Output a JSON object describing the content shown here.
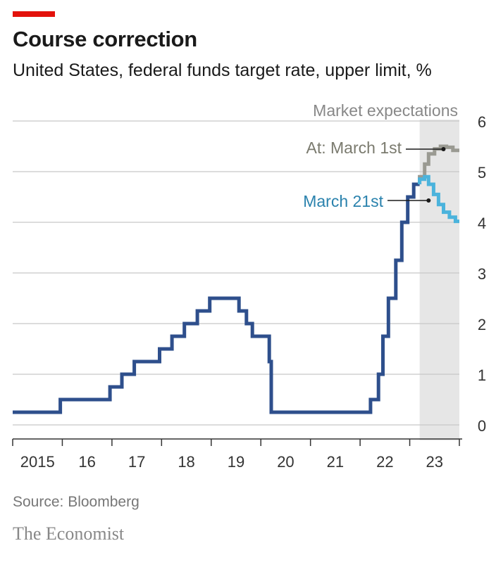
{
  "header": {
    "accent_color": "#e3120b",
    "title": "Course correction",
    "subtitle": "United States, federal funds target rate, upper limit, %"
  },
  "footer": {
    "source": "Source: Bloomberg",
    "brand": "The Economist"
  },
  "chart_data": {
    "type": "line",
    "step": true,
    "title": "Course correction",
    "subtitle": "United States, federal funds target rate, upper limit, %",
    "x_range": [
      2015.0,
      2024.0
    ],
    "x_ticks": [
      2015,
      2016,
      2017,
      2018,
      2019,
      2020,
      2021,
      2022,
      2023
    ],
    "x_tick_labels": [
      "2015",
      "16",
      "17",
      "18",
      "19",
      "20",
      "21",
      "22",
      "23"
    ],
    "ylim": [
      0,
      6
    ],
    "y_ticks": [
      0,
      1,
      2,
      3,
      4,
      5,
      6
    ],
    "y_tick_labels": [
      "0",
      "1",
      "2",
      "3",
      "4",
      "5",
      "6"
    ],
    "y_axis_side": "right",
    "grid": "horizontal",
    "shaded_region": {
      "label": "Market expectations",
      "x": [
        2023.2,
        2024.0
      ],
      "color": "#e6e6e6"
    },
    "series": [
      {
        "color": "#2e4f8c",
        "points": [
          [
            2015.0,
            0.25
          ],
          [
            2015.96,
            0.25
          ],
          [
            2015.96,
            0.5
          ],
          [
            2016.96,
            0.5
          ],
          [
            2016.96,
            0.75
          ],
          [
            2017.2,
            0.75
          ],
          [
            2017.2,
            1.0
          ],
          [
            2017.45,
            1.0
          ],
          [
            2017.45,
            1.25
          ],
          [
            2017.96,
            1.25
          ],
          [
            2017.96,
            1.5
          ],
          [
            2018.21,
            1.5
          ],
          [
            2018.21,
            1.75
          ],
          [
            2018.46,
            1.75
          ],
          [
            2018.46,
            2.0
          ],
          [
            2018.72,
            2.0
          ],
          [
            2018.72,
            2.25
          ],
          [
            2018.97,
            2.25
          ],
          [
            2018.97,
            2.5
          ],
          [
            2019.56,
            2.5
          ],
          [
            2019.56,
            2.25
          ],
          [
            2019.71,
            2.25
          ],
          [
            2019.71,
            2.0
          ],
          [
            2019.83,
            2.0
          ],
          [
            2019.83,
            1.75
          ],
          [
            2020.17,
            1.75
          ],
          [
            2020.17,
            1.25
          ],
          [
            2020.21,
            1.25
          ],
          [
            2020.21,
            0.25
          ],
          [
            2022.21,
            0.25
          ],
          [
            2022.21,
            0.5
          ],
          [
            2022.37,
            0.5
          ],
          [
            2022.37,
            1.0
          ],
          [
            2022.46,
            1.0
          ],
          [
            2022.46,
            1.75
          ],
          [
            2022.57,
            1.75
          ],
          [
            2022.57,
            2.5
          ],
          [
            2022.72,
            2.5
          ],
          [
            2022.72,
            3.25
          ],
          [
            2022.84,
            3.25
          ],
          [
            2022.84,
            4.0
          ],
          [
            2022.96,
            4.0
          ],
          [
            2022.96,
            4.5
          ],
          [
            2023.08,
            4.5
          ],
          [
            2023.08,
            4.75
          ],
          [
            2023.2,
            4.75
          ]
        ]
      },
      {
        "name": "At: March 1st",
        "color": "#9a9a92",
        "points": [
          [
            2023.2,
            4.75
          ],
          [
            2023.2,
            4.9
          ],
          [
            2023.3,
            4.9
          ],
          [
            2023.3,
            5.15
          ],
          [
            2023.38,
            5.15
          ],
          [
            2023.38,
            5.35
          ],
          [
            2023.5,
            5.35
          ],
          [
            2023.5,
            5.45
          ],
          [
            2023.62,
            5.45
          ],
          [
            2023.62,
            5.5
          ],
          [
            2023.74,
            5.5
          ],
          [
            2023.74,
            5.48
          ],
          [
            2023.87,
            5.48
          ],
          [
            2023.87,
            5.42
          ],
          [
            2024.0,
            5.42
          ]
        ]
      },
      {
        "name": "March 21st",
        "color": "#4bb3dc",
        "points": [
          [
            2023.2,
            4.75
          ],
          [
            2023.2,
            4.85
          ],
          [
            2023.3,
            4.85
          ],
          [
            2023.3,
            4.9
          ],
          [
            2023.38,
            4.9
          ],
          [
            2023.38,
            4.75
          ],
          [
            2023.48,
            4.75
          ],
          [
            2023.48,
            4.55
          ],
          [
            2023.58,
            4.55
          ],
          [
            2023.58,
            4.35
          ],
          [
            2023.68,
            4.35
          ],
          [
            2023.68,
            4.2
          ],
          [
            2023.8,
            4.2
          ],
          [
            2023.8,
            4.1
          ],
          [
            2023.92,
            4.1
          ],
          [
            2023.92,
            4.02
          ],
          [
            2024.0,
            4.02
          ]
        ]
      }
    ],
    "annotations": [
      {
        "text": "Market expectations",
        "color": "#888888"
      },
      {
        "text": "At: March 1st",
        "color": "#7a7a6e",
        "series": "At: March 1st"
      },
      {
        "text": "March 21st",
        "color": "#2a82ad",
        "series": "March 21st"
      }
    ]
  }
}
